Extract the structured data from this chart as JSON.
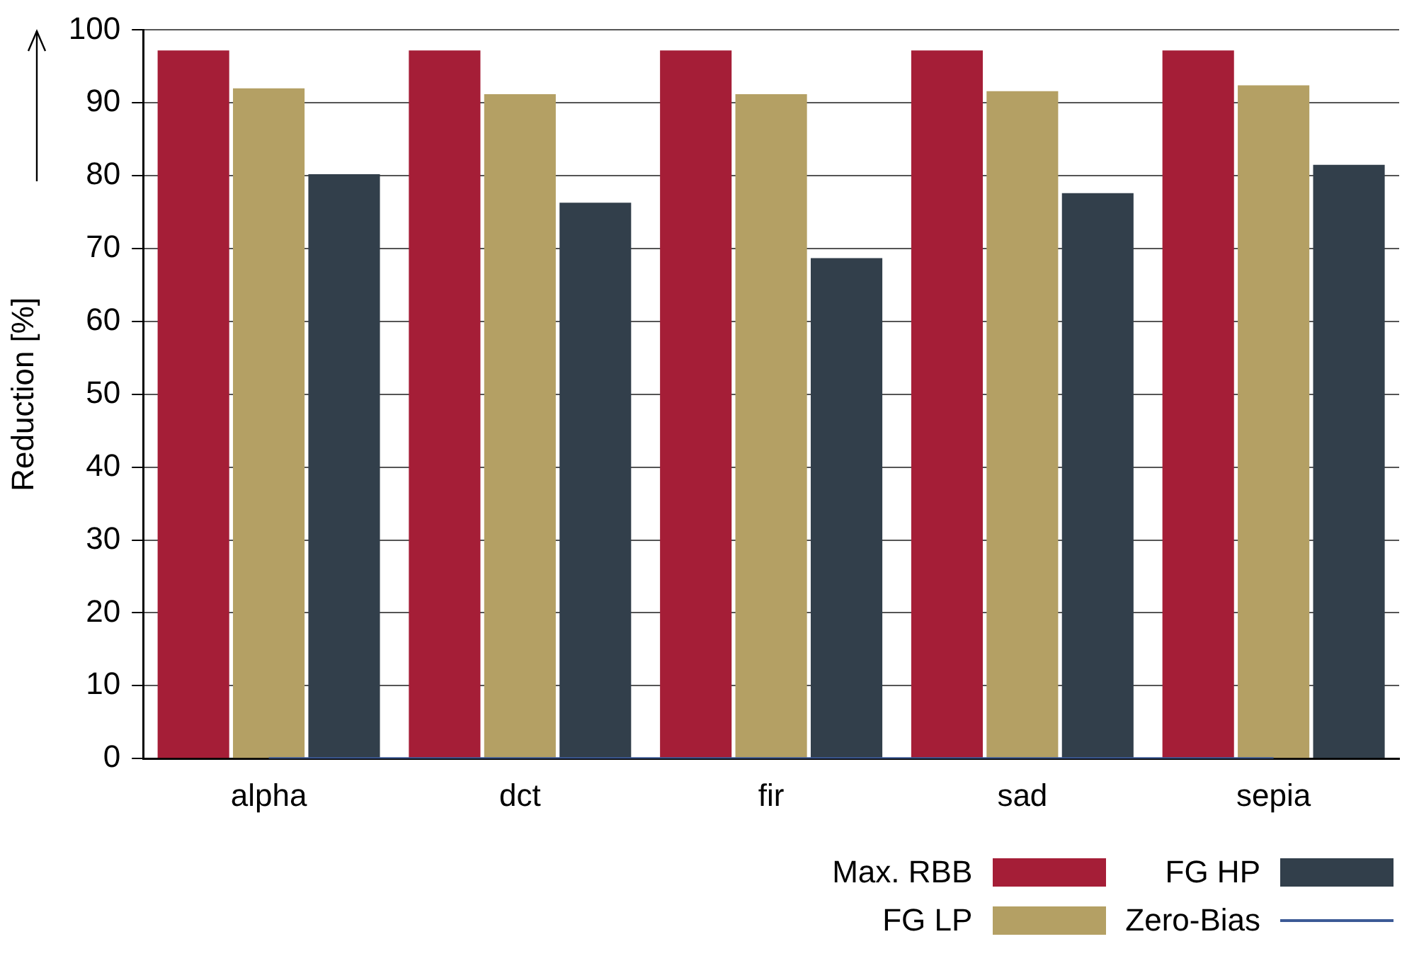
{
  "chart_data": {
    "type": "bar",
    "ylabel": "Reduction [%]",
    "categories": [
      "alpha",
      "dct",
      "fir",
      "sad",
      "sepia"
    ],
    "series": [
      {
        "name": "Max. RBB",
        "color": "#a51e37",
        "values": [
          97.2,
          97.2,
          97.2,
          97.2,
          97.2
        ]
      },
      {
        "name": "FG LP",
        "color": "#b4a064",
        "values": [
          92.0,
          91.2,
          91.2,
          91.6,
          92.4
        ]
      },
      {
        "name": "FG HP",
        "color": "#323f4b",
        "values": [
          80.2,
          76.3,
          68.7,
          77.6,
          81.5
        ]
      },
      {
        "name": "Zero-Bias",
        "type": "line",
        "color": "#3c5a96",
        "values": [
          0,
          0,
          0,
          0,
          0
        ]
      }
    ],
    "ylim": [
      0,
      100
    ],
    "yticks": [
      0,
      10,
      20,
      30,
      40,
      50,
      60,
      70,
      80,
      90,
      100
    ],
    "grid": "y",
    "legend": "bottom right",
    "marker": "none"
  }
}
